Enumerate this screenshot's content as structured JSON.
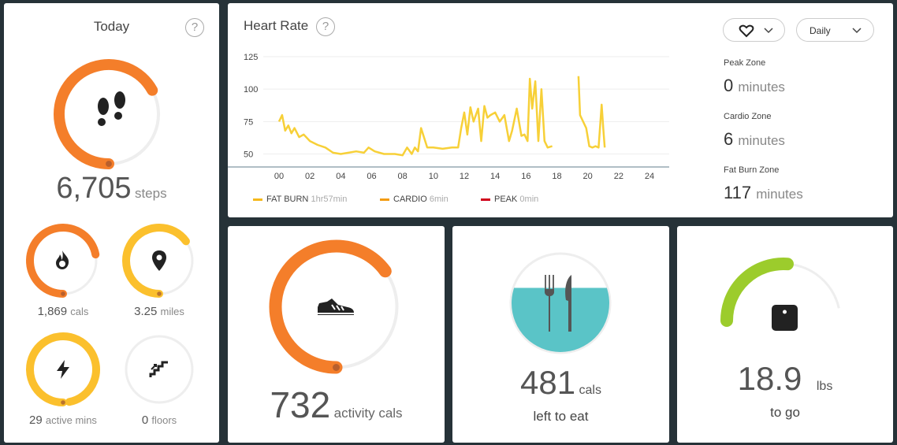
{
  "today": {
    "title": "Today",
    "help": "?",
    "steps": {
      "value": "6,705",
      "unit": "steps",
      "progress": 0.67
    },
    "calories": {
      "value": "1,869",
      "unit": "cals",
      "progress": 0.72
    },
    "distance": {
      "value": "3.25",
      "unit": "miles",
      "progress": 0.65
    },
    "active_minutes": {
      "value": "29",
      "unit": "active mins",
      "progress": 0.97
    },
    "floors": {
      "value": "0",
      "unit": "floors",
      "progress": 0
    }
  },
  "heart_rate": {
    "title": "Heart Rate",
    "help": "?",
    "period_dropdown": "Daily",
    "heart_icon": "heart-icon",
    "zones": [
      {
        "label": "Peak Zone",
        "value": "0",
        "unit": "minutes"
      },
      {
        "label": "Cardio Zone",
        "value": "6",
        "unit": "minutes"
      },
      {
        "label": "Fat Burn Zone",
        "value": "117",
        "unit": "minutes"
      }
    ],
    "legend": [
      {
        "name": "FAT BURN",
        "duration": "1hr57min",
        "color": "#F5B81B"
      },
      {
        "name": "CARDIO",
        "duration": "6min",
        "color": "#F39C12"
      },
      {
        "name": "PEAK",
        "duration": "0min",
        "color": "#D0021B"
      }
    ]
  },
  "chart_data": {
    "type": "line",
    "title": "Heart Rate",
    "xlim": [
      0,
      24
    ],
    "ylim": [
      40,
      125
    ],
    "x_ticks": [
      "00",
      "02",
      "04",
      "06",
      "08",
      "10",
      "12",
      "14",
      "16",
      "18",
      "20",
      "22",
      "24"
    ],
    "y_ticks": [
      "125",
      "100",
      "75",
      "50"
    ],
    "grid": true,
    "series": [
      {
        "color": "#F7D038",
        "x": [
          0,
          0.2,
          0.4,
          0.6,
          0.8,
          1.0,
          1.3,
          1.6,
          2.0,
          2.5,
          3.0,
          3.5,
          4.0,
          4.5,
          5.0,
          5.5,
          5.8,
          6.2,
          6.8,
          7.5,
          8.0,
          8.3,
          8.6,
          8.8,
          9.0,
          9.2,
          9.6,
          10.0,
          10.6,
          11.2,
          11.6,
          11.8,
          12.0,
          12.2,
          12.4,
          12.6,
          12.9,
          13.1,
          13.3,
          13.5,
          13.7,
          14.0,
          14.3,
          14.6,
          14.9,
          15.1,
          15.4,
          15.7,
          15.9,
          16.1,
          16.25,
          16.4,
          16.6,
          16.8,
          17.0,
          17.2,
          17.4,
          17.7
        ],
        "y": [
          75,
          80,
          68,
          72,
          66,
          70,
          63,
          65,
          60,
          57,
          55,
          51,
          50,
          51,
          52,
          51,
          55,
          52,
          50,
          50,
          49,
          55,
          50,
          55,
          52,
          70,
          55,
          55,
          54,
          55,
          55,
          70,
          82,
          65,
          86,
          75,
          85,
          60,
          87,
          78,
          80,
          82,
          75,
          80,
          60,
          68,
          85,
          64,
          65,
          60,
          108,
          85,
          106,
          60,
          100,
          60,
          55,
          56
        ]
      },
      {
        "color": "#F7D038",
        "x": [
          19.4,
          19.5,
          19.7,
          19.9,
          20.1,
          20.3,
          20.5,
          20.7,
          20.9,
          21.0,
          21.1
        ],
        "y": [
          110,
          80,
          75,
          70,
          56,
          55,
          56,
          55,
          88,
          70,
          55
        ]
      }
    ]
  },
  "activity": {
    "value": "732",
    "unit": "activity cals",
    "progress": 0.65
  },
  "food": {
    "value": "481",
    "unit": "cals",
    "subtitle": "left to eat",
    "fill_fraction": 0.35
  },
  "weight": {
    "value": "18.9",
    "unit": "lbs",
    "subtitle": "to go",
    "progress": 0.36
  },
  "colors": {
    "orange": "#F47E2A",
    "yellow": "#FBC02D",
    "green": "#9CCC2C",
    "teal": "#5AC4C7",
    "track": "#EEEEEE",
    "heart_line": "#F7D038"
  }
}
